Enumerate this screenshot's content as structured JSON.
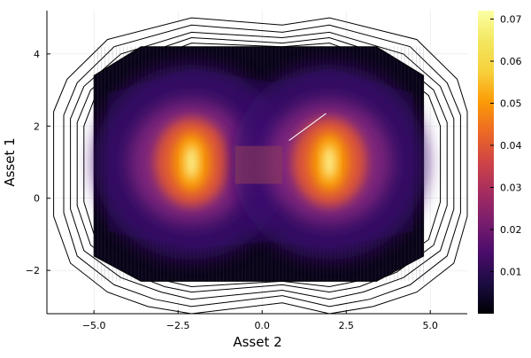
{
  "chart_data": {
    "type": "heatmap",
    "xlabel": "Asset 2",
    "ylabel": "Asset 1",
    "xlim": [
      -6.4,
      6.1
    ],
    "ylim": [
      -3.2,
      5.2
    ],
    "xticks": [
      -5.0,
      -2.5,
      0.0,
      2.5,
      5.0
    ],
    "xtick_labels": [
      "−5.0",
      "−2.5",
      "0.0",
      "2.5",
      "5.0"
    ],
    "yticks": [
      -2,
      0,
      2,
      4
    ],
    "ytick_labels": [
      "−2",
      "0",
      "2",
      "4"
    ],
    "grid": true,
    "colorbar": {
      "colormap": "inferno",
      "range": [
        0.0,
        0.072
      ],
      "ticks": [
        0.01,
        0.02,
        0.03,
        0.04,
        0.05,
        0.06,
        0.07
      ],
      "tick_labels": [
        "0.01",
        "0.02",
        "0.03",
        "0.04",
        "0.05",
        "0.06",
        "0.07"
      ]
    },
    "peaks": [
      {
        "x": -2.1,
        "y": 1.0,
        "value": 0.072
      },
      {
        "x": 2.0,
        "y": 1.0,
        "value": 0.072
      }
    ],
    "outer_contours": [
      [
        [
          -6.2,
          2.4
        ],
        [
          -5.8,
          3.3
        ],
        [
          -4.6,
          4.4
        ],
        [
          -2.1,
          5.0
        ],
        [
          0.6,
          4.8
        ],
        [
          2.0,
          5.0
        ],
        [
          4.6,
          4.4
        ],
        [
          5.8,
          3.3
        ],
        [
          6.1,
          2.4
        ],
        [
          6.1,
          -0.5
        ],
        [
          5.7,
          -1.8
        ],
        [
          4.6,
          -2.6
        ],
        [
          3.3,
          -3.0
        ],
        [
          2.0,
          -3.2
        ],
        [
          0.6,
          -2.9
        ],
        [
          -2.1,
          -3.2
        ],
        [
          -3.4,
          -3.0
        ],
        [
          -4.6,
          -2.6
        ],
        [
          -5.7,
          -1.8
        ],
        [
          -6.2,
          -0.5
        ]
      ],
      [
        [
          -5.9,
          2.3
        ],
        [
          -5.5,
          3.2
        ],
        [
          -4.4,
          4.2
        ],
        [
          -2.1,
          4.8
        ],
        [
          0.6,
          4.6
        ],
        [
          2.0,
          4.8
        ],
        [
          4.4,
          4.2
        ],
        [
          5.5,
          3.2
        ],
        [
          5.9,
          2.3
        ],
        [
          5.9,
          -0.4
        ],
        [
          5.5,
          -1.6
        ],
        [
          4.4,
          -2.4
        ],
        [
          3.2,
          -2.8
        ],
        [
          2.0,
          -3.0
        ],
        [
          0.6,
          -2.7
        ],
        [
          -2.1,
          -3.0
        ],
        [
          -3.2,
          -2.8
        ],
        [
          -4.4,
          -2.4
        ],
        [
          -5.5,
          -1.6
        ],
        [
          -5.9,
          -0.4
        ]
      ],
      [
        [
          -5.7,
          2.2
        ],
        [
          -5.3,
          3.1
        ],
        [
          -4.2,
          4.0
        ],
        [
          -2.1,
          4.6
        ],
        [
          0.6,
          4.45
        ],
        [
          2.0,
          4.6
        ],
        [
          4.2,
          4.0
        ],
        [
          5.3,
          3.1
        ],
        [
          5.7,
          2.2
        ],
        [
          5.7,
          -0.3
        ],
        [
          5.3,
          -1.45
        ],
        [
          4.2,
          -2.2
        ],
        [
          3.0,
          -2.6
        ],
        [
          2.0,
          -2.8
        ],
        [
          0.6,
          -2.55
        ],
        [
          -2.1,
          -2.8
        ],
        [
          -3.0,
          -2.6
        ],
        [
          -4.2,
          -2.2
        ],
        [
          -5.3,
          -1.45
        ],
        [
          -5.7,
          -0.3
        ]
      ],
      [
        [
          -5.5,
          2.1
        ],
        [
          -5.1,
          3.0
        ],
        [
          -4.0,
          3.85
        ],
        [
          -2.1,
          4.45
        ],
        [
          0.6,
          4.3
        ],
        [
          2.0,
          4.45
        ],
        [
          4.0,
          3.85
        ],
        [
          5.1,
          3.0
        ],
        [
          5.5,
          2.1
        ],
        [
          5.5,
          -0.2
        ],
        [
          5.1,
          -1.3
        ],
        [
          4.0,
          -2.05
        ],
        [
          2.9,
          -2.45
        ],
        [
          2.0,
          -2.6
        ],
        [
          0.6,
          -2.4
        ],
        [
          -2.1,
          -2.6
        ],
        [
          -2.9,
          -2.45
        ],
        [
          -4.0,
          -2.05
        ],
        [
          -5.1,
          -1.3
        ],
        [
          -5.5,
          -0.2
        ]
      ],
      [
        [
          -5.3,
          2.0
        ],
        [
          -4.95,
          2.85
        ],
        [
          -3.8,
          3.7
        ],
        [
          -2.1,
          4.3
        ],
        [
          0.6,
          4.2
        ],
        [
          2.0,
          4.3
        ],
        [
          3.8,
          3.7
        ],
        [
          4.95,
          2.85
        ],
        [
          5.3,
          2.0
        ],
        [
          5.3,
          -0.1
        ],
        [
          4.95,
          -1.15
        ],
        [
          3.8,
          -1.9
        ],
        [
          2.8,
          -2.3
        ],
        [
          2.0,
          -2.45
        ],
        [
          0.6,
          -2.3
        ],
        [
          -2.1,
          -2.45
        ],
        [
          -2.8,
          -2.3
        ],
        [
          -3.8,
          -1.9
        ],
        [
          -4.95,
          -1.15
        ],
        [
          -5.3,
          -0.1
        ]
      ]
    ]
  }
}
